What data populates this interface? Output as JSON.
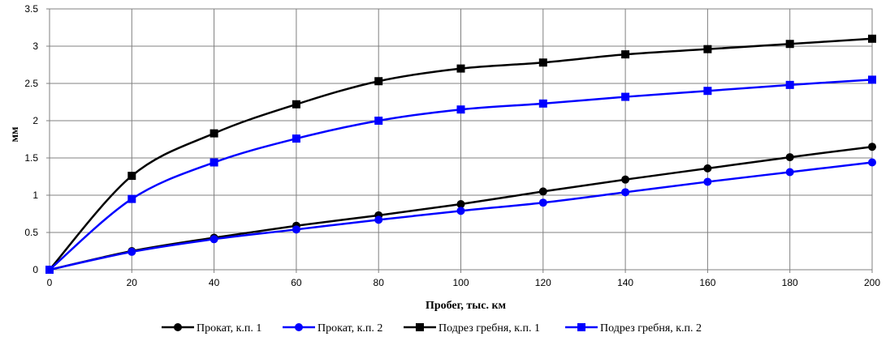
{
  "chart_data": {
    "type": "line",
    "xlabel": "Пробег, тыс. км",
    "ylabel": "мм",
    "xlim": [
      0,
      200
    ],
    "ylim": [
      0,
      3.5
    ],
    "x_ticks": [
      "0",
      "20",
      "40",
      "60",
      "80",
      "100",
      "120",
      "140",
      "160",
      "180",
      "200"
    ],
    "y_ticks": [
      "0",
      "0.5",
      "1",
      "1.5",
      "2",
      "2.5",
      "3",
      "3.5"
    ],
    "grid": true,
    "legend_position": "bottom",
    "x": [
      0,
      20,
      40,
      60,
      80,
      100,
      120,
      140,
      160,
      180,
      200
    ],
    "series": [
      {
        "name": "Прокат, к.п. 1",
        "color": "#000000",
        "marker": "circle",
        "values": [
          0,
          0.25,
          0.43,
          0.59,
          0.73,
          0.88,
          1.05,
          1.21,
          1.36,
          1.51,
          1.65
        ]
      },
      {
        "name": "Прокат, к.п. 2",
        "color": "#0000ff",
        "marker": "circle",
        "values": [
          0,
          0.24,
          0.41,
          0.54,
          0.67,
          0.79,
          0.9,
          1.04,
          1.18,
          1.31,
          1.44
        ]
      },
      {
        "name": "Подрез гребня, к.п. 1",
        "color": "#000000",
        "marker": "square",
        "values": [
          0,
          1.26,
          1.83,
          2.22,
          2.53,
          2.7,
          2.78,
          2.89,
          2.96,
          3.03,
          3.1
        ]
      },
      {
        "name": "Подрез гребня, к.п. 2",
        "color": "#0000ff",
        "marker": "square",
        "values": [
          0,
          0.95,
          1.44,
          1.76,
          2.0,
          2.15,
          2.23,
          2.32,
          2.4,
          2.48,
          2.55
        ]
      }
    ]
  }
}
